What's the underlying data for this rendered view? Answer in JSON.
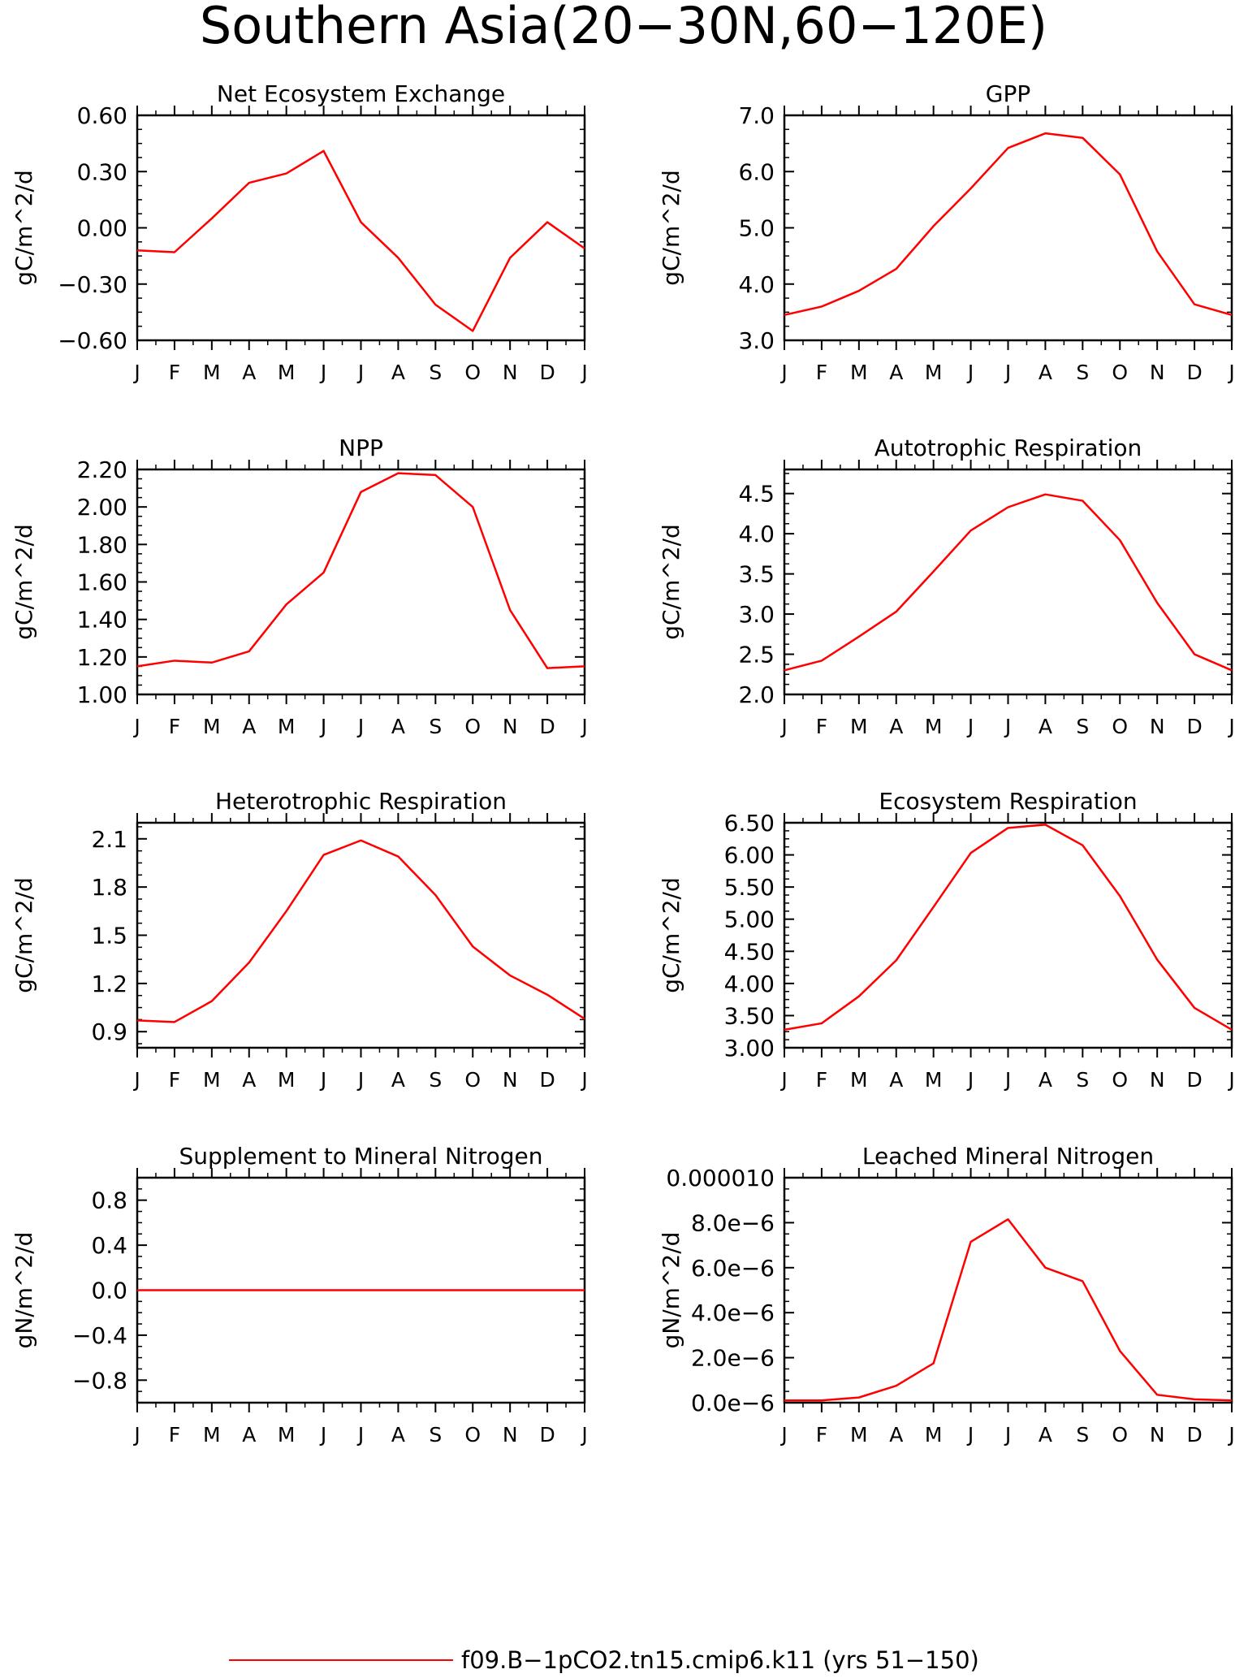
{
  "page_title": "Southern Asia(20−30N,60−120E)",
  "legend": {
    "label": "f09.B−1pCO2.tn15.cmip6.k11 (yrs 51−150)",
    "line_color": "#ff0000"
  },
  "series_color": "#ff0000",
  "chart_data": [
    {
      "type": "line",
      "title": "Net Ecosystem Exchange",
      "xlabel": "",
      "ylabel": "gC/m^2/d",
      "categories": [
        "J",
        "F",
        "M",
        "A",
        "M",
        "J",
        "J",
        "A",
        "S",
        "O",
        "N",
        "D",
        "J"
      ],
      "ylim": [
        -0.6,
        0.6
      ],
      "yticks": [
        -0.6,
        -0.3,
        0.0,
        0.3,
        0.6
      ],
      "ytick_labels": [
        "−0.60",
        "−0.30",
        "0.00",
        "0.30",
        "0.60"
      ],
      "grid": false,
      "values": [
        -0.12,
        -0.13,
        0.05,
        0.24,
        0.29,
        0.41,
        0.03,
        -0.16,
        -0.41,
        -0.55,
        -0.16,
        0.03,
        -0.11
      ]
    },
    {
      "type": "line",
      "title": "GPP",
      "xlabel": "",
      "ylabel": "gC/m^2/d",
      "categories": [
        "J",
        "F",
        "M",
        "A",
        "M",
        "J",
        "J",
        "A",
        "S",
        "O",
        "N",
        "D",
        "J"
      ],
      "ylim": [
        3.0,
        7.0
      ],
      "yticks": [
        3.0,
        4.0,
        5.0,
        6.0,
        7.0
      ],
      "ytick_labels": [
        "3.0",
        "4.0",
        "5.0",
        "6.0",
        "7.0"
      ],
      "grid": false,
      "values": [
        3.45,
        3.6,
        3.88,
        4.27,
        5.03,
        5.7,
        6.42,
        6.68,
        6.6,
        5.95,
        4.58,
        3.64,
        3.45
      ]
    },
    {
      "type": "line",
      "title": "NPP",
      "xlabel": "",
      "ylabel": "gC/m^2/d",
      "categories": [
        "J",
        "F",
        "M",
        "A",
        "M",
        "J",
        "J",
        "A",
        "S",
        "O",
        "N",
        "D",
        "J"
      ],
      "ylim": [
        1.0,
        2.2
      ],
      "yticks": [
        1.0,
        1.2,
        1.4,
        1.6,
        1.8,
        2.0,
        2.2
      ],
      "ytick_labels": [
        "1.00",
        "1.20",
        "1.40",
        "1.60",
        "1.80",
        "2.00",
        "2.20"
      ],
      "grid": false,
      "values": [
        1.15,
        1.18,
        1.17,
        1.23,
        1.48,
        1.65,
        2.08,
        2.18,
        2.17,
        2.0,
        1.45,
        1.14,
        1.15
      ]
    },
    {
      "type": "line",
      "title": "Autotrophic Respiration",
      "xlabel": "",
      "ylabel": "gC/m^2/d",
      "categories": [
        "J",
        "F",
        "M",
        "A",
        "M",
        "J",
        "J",
        "A",
        "S",
        "O",
        "N",
        "D",
        "J"
      ],
      "ylim": [
        2.0,
        4.8
      ],
      "yticks": [
        2.0,
        2.5,
        3.0,
        3.5,
        4.0,
        4.5
      ],
      "ytick_labels": [
        "2.0",
        "2.5",
        "3.0",
        "3.5",
        "4.0",
        "4.5"
      ],
      "grid": false,
      "values": [
        2.3,
        2.42,
        2.72,
        3.03,
        3.53,
        4.04,
        4.33,
        4.49,
        4.41,
        3.92,
        3.14,
        2.5,
        2.3
      ]
    },
    {
      "type": "line",
      "title": "Heterotrophic Respiration",
      "xlabel": "",
      "ylabel": "gC/m^2/d",
      "categories": [
        "J",
        "F",
        "M",
        "A",
        "M",
        "J",
        "J",
        "A",
        "S",
        "O",
        "N",
        "D",
        "J"
      ],
      "ylim": [
        0.8,
        2.2
      ],
      "yticks": [
        0.9,
        1.2,
        1.5,
        1.8,
        2.1
      ],
      "ytick_labels": [
        "0.9",
        "1.2",
        "1.5",
        "1.8",
        "2.1"
      ],
      "grid": false,
      "values": [
        0.97,
        0.96,
        1.09,
        1.33,
        1.65,
        2.0,
        2.09,
        1.99,
        1.75,
        1.43,
        1.25,
        1.13,
        0.98
      ]
    },
    {
      "type": "line",
      "title": "Ecosystem Respiration",
      "xlabel": "",
      "ylabel": "gC/m^2/d",
      "categories": [
        "J",
        "F",
        "M",
        "A",
        "M",
        "J",
        "J",
        "A",
        "S",
        "O",
        "N",
        "D",
        "J"
      ],
      "ylim": [
        3.0,
        6.5
      ],
      "yticks": [
        3.0,
        3.5,
        4.0,
        4.5,
        5.0,
        5.5,
        6.0,
        6.5
      ],
      "ytick_labels": [
        "3.00",
        "3.50",
        "4.00",
        "4.50",
        "5.00",
        "5.50",
        "6.00",
        "6.50"
      ],
      "grid": false,
      "values": [
        3.28,
        3.38,
        3.8,
        4.36,
        5.19,
        6.03,
        6.42,
        6.47,
        6.15,
        5.36,
        4.37,
        3.62,
        3.28
      ]
    },
    {
      "type": "line",
      "title": "Supplement to Mineral Nitrogen",
      "xlabel": "",
      "ylabel": "gN/m^2/d",
      "categories": [
        "J",
        "F",
        "M",
        "A",
        "M",
        "J",
        "J",
        "A",
        "S",
        "O",
        "N",
        "D",
        "J"
      ],
      "ylim": [
        -1.0,
        1.0
      ],
      "yticks": [
        -0.8,
        -0.4,
        0.0,
        0.4,
        0.8
      ],
      "ytick_labels": [
        "−0.8",
        "−0.4",
        "0.0",
        "0.4",
        "0.8"
      ],
      "grid": false,
      "values": [
        0,
        0,
        0,
        0,
        0,
        0,
        0,
        0,
        0,
        0,
        0,
        0,
        0
      ]
    },
    {
      "type": "line",
      "title": "Leached Mineral Nitrogen",
      "xlabel": "",
      "ylabel": "gN/m^2/d",
      "categories": [
        "J",
        "F",
        "M",
        "A",
        "M",
        "J",
        "J",
        "A",
        "S",
        "O",
        "N",
        "D",
        "J"
      ],
      "ylim": [
        0.0,
        1e-05
      ],
      "yticks": [
        0.0,
        2e-06,
        4e-06,
        6e-06,
        8e-06,
        1e-05
      ],
      "ytick_labels": [
        "0.0e−6",
        "2.0e−6",
        "4.0e−6",
        "6.0e−6",
        "8.0e−6",
        "0.000010"
      ],
      "grid": false,
      "values": [
        1e-07,
        1e-07,
        2.3e-07,
        7.5e-07,
        1.75e-06,
        7.15e-06,
        8.15e-06,
        6e-06,
        5.4e-06,
        2.3e-06,
        3.5e-07,
        1.5e-07,
        1e-07
      ]
    }
  ]
}
